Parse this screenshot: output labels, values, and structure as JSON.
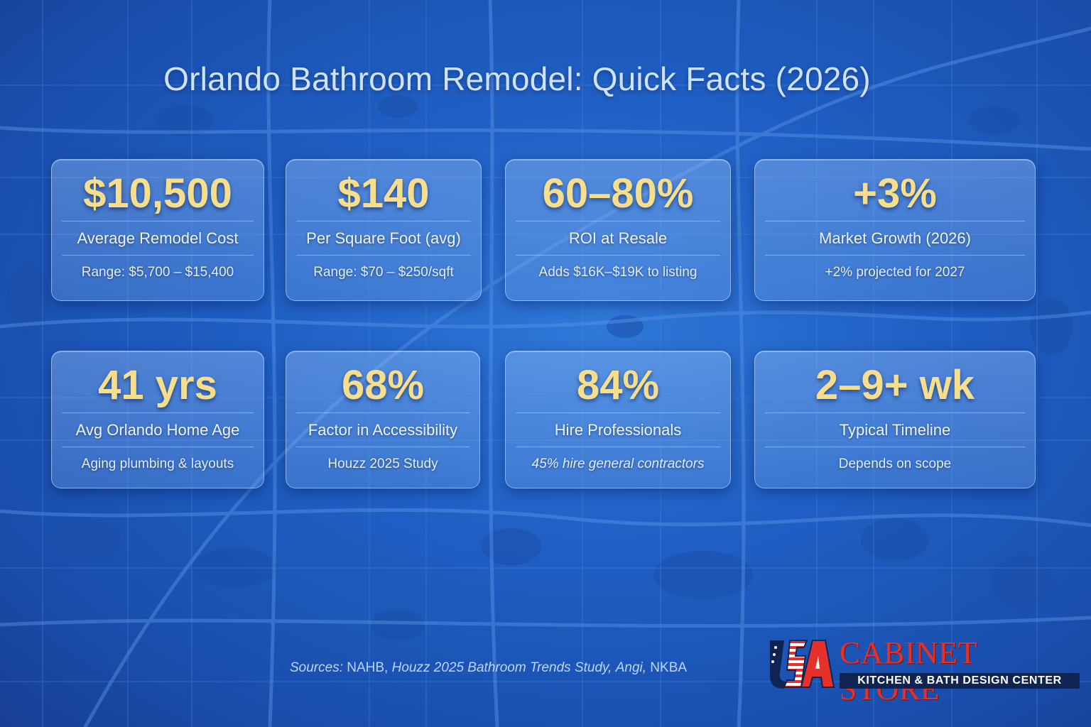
{
  "title": "Orlando Bathroom Remodel: Quick Facts (2026)",
  "cards": [
    {
      "stat": "$10,500",
      "label": "Average Remodel Cost",
      "sub": "Range: $5,700 – $15,400"
    },
    {
      "stat": "$140",
      "label": "Per Square Foot (avg)",
      "sub": "Range: $70 – $250/sqft"
    },
    {
      "stat": "60–80%",
      "label": "ROI at Resale",
      "sub": "Adds $16K–$19K to listing"
    },
    {
      "stat": "+3%",
      "label": "Market Growth (2026)",
      "sub": "+2% projected for 2027"
    },
    {
      "stat": "41 yrs",
      "label": "Avg Orlando Home Age",
      "sub": "Aging plumbing & layouts"
    },
    {
      "stat": "68%",
      "label": "Factor in Accessibility",
      "sub": "Houzz 2025 Study"
    },
    {
      "stat": "84%",
      "label": "Hire Professionals",
      "sub": "45% hire general contractors"
    },
    {
      "stat": "2–9+ wk",
      "label": "Typical Timeline",
      "sub": "Depends on scope"
    }
  ],
  "sources": {
    "lead": "Sources:",
    "nahb": "NAHB,",
    "houzz": "Houzz 2025 Bathroom Trends Study,",
    "angi": "Angi,",
    "nkba": "NKBA"
  },
  "logo": {
    "mark": "USA",
    "name": "CABINET STORE",
    "tagline": "KITCHEN & BATH DESIGN CENTER",
    "colors": {
      "red": "#e4312b",
      "navy": "#0f2452"
    }
  },
  "colors": {
    "background": "#1f5fc4",
    "stat_gold": "#f6de8c",
    "title": "#cfe3ff"
  }
}
